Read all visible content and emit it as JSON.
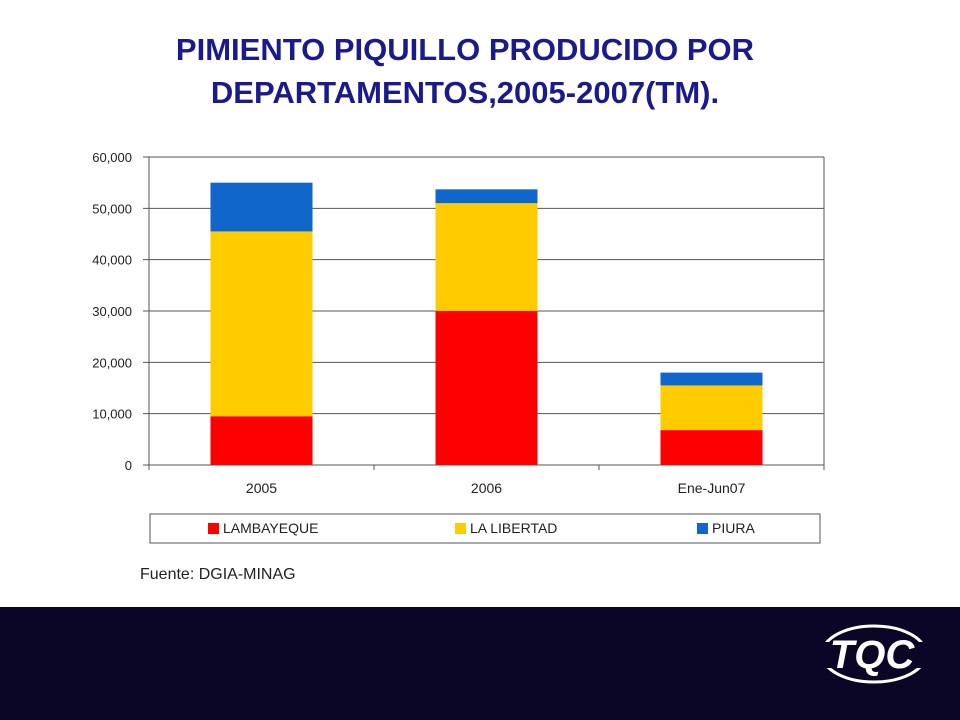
{
  "title_line1": "PIMIENTO PIQUILLO PRODUCIDO POR",
  "title_line2": "DEPARTAMENTOS,2005-2007(TM).",
  "source_text": "Fuente: DGIA-MINAG",
  "logo_text": "TQC",
  "colors": {
    "title": "#1a1a8c",
    "footer": "#0c0626",
    "grid": "#555555"
  },
  "chart_data": {
    "type": "bar",
    "stacked": true,
    "categories": [
      "2005",
      "2006",
      "Ene-Jun07"
    ],
    "series": [
      {
        "name": "LAMBAYEQUE",
        "color": "#ff0000",
        "values": [
          9500,
          30000,
          6800
        ]
      },
      {
        "name": "LA LIBERTAD",
        "color": "#ffcc00",
        "values": [
          36000,
          21000,
          8700
        ]
      },
      {
        "name": "PIURA",
        "color": "#1166cc",
        "values": [
          9500,
          2700,
          2500
        ]
      }
    ],
    "yticks": [
      "0",
      "10,000",
      "20,000",
      "30,000",
      "40,000",
      "50,000",
      "60,000"
    ],
    "ylim": [
      0,
      60000
    ],
    "grid": true,
    "legend_position": "bottom"
  }
}
